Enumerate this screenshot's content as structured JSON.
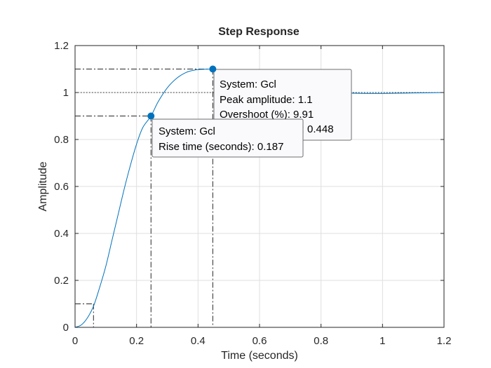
{
  "chart_data": {
    "type": "line",
    "title": "Step Response",
    "xlabel": "Time (seconds)",
    "ylabel": "Amplitude",
    "xlim": [
      0,
      1.2
    ],
    "ylim": [
      0,
      1.2
    ],
    "xticks": [
      0,
      0.2,
      0.4,
      0.6,
      0.8,
      1,
      1.2
    ],
    "xtick_labels": [
      "0",
      "0.2",
      "0.4",
      "0.6",
      "0.8",
      "1",
      "1.2"
    ],
    "yticks": [
      0,
      0.2,
      0.4,
      0.6,
      0.8,
      1,
      1.2
    ],
    "ytick_labels": [
      "0",
      "0.2",
      "0.4",
      "0.6",
      "0.8",
      "1",
      "1.2"
    ],
    "grid": true,
    "series": [
      {
        "color": "#0072bd",
        "x": [
          0,
          0.02,
          0.04,
          0.06,
          0.08,
          0.1,
          0.12,
          0.14,
          0.16,
          0.18,
          0.2,
          0.22,
          0.247,
          0.27,
          0.3,
          0.33,
          0.36,
          0.39,
          0.42,
          0.448,
          0.48,
          0.51,
          0.55,
          0.6,
          0.65,
          0.7,
          0.75,
          0.8,
          0.85,
          0.9,
          0.95,
          1.0,
          1.05,
          1.1,
          1.15,
          1.2
        ],
        "y": [
          0,
          0.01,
          0.04,
          0.09,
          0.17,
          0.26,
          0.37,
          0.48,
          0.59,
          0.69,
          0.78,
          0.85,
          0.9,
          0.96,
          1.02,
          1.06,
          1.085,
          1.096,
          1.099,
          1.099,
          1.093,
          1.083,
          1.067,
          1.047,
          1.03,
          1.018,
          1.009,
          1.003,
          0.999,
          0.997,
          0.996,
          0.996,
          0.997,
          0.998,
          0.999,
          1.0
        ]
      }
    ],
    "reference_lines": {
      "steady_state": 1,
      "rise_start": {
        "t": 0.06,
        "y": 0.1
      },
      "rise_end": {
        "t": 0.247,
        "y": 0.9
      },
      "peak": {
        "t": 0.448,
        "y": 1.1
      }
    },
    "datatips": {
      "rise": {
        "t": 0.247,
        "y": 0.9,
        "lines": [
          "System: Gcl",
          "Rise time (seconds): 0.187"
        ]
      },
      "peak": {
        "t": 0.448,
        "y": 1.1,
        "lines": [
          "System: Gcl",
          "Peak amplitude: 1.1",
          "Overshoot (%): 9.91",
          "At time (seconds): 0.448"
        ]
      }
    },
    "colors": {
      "line": "#0072bd",
      "marker": "#0072bd"
    }
  }
}
